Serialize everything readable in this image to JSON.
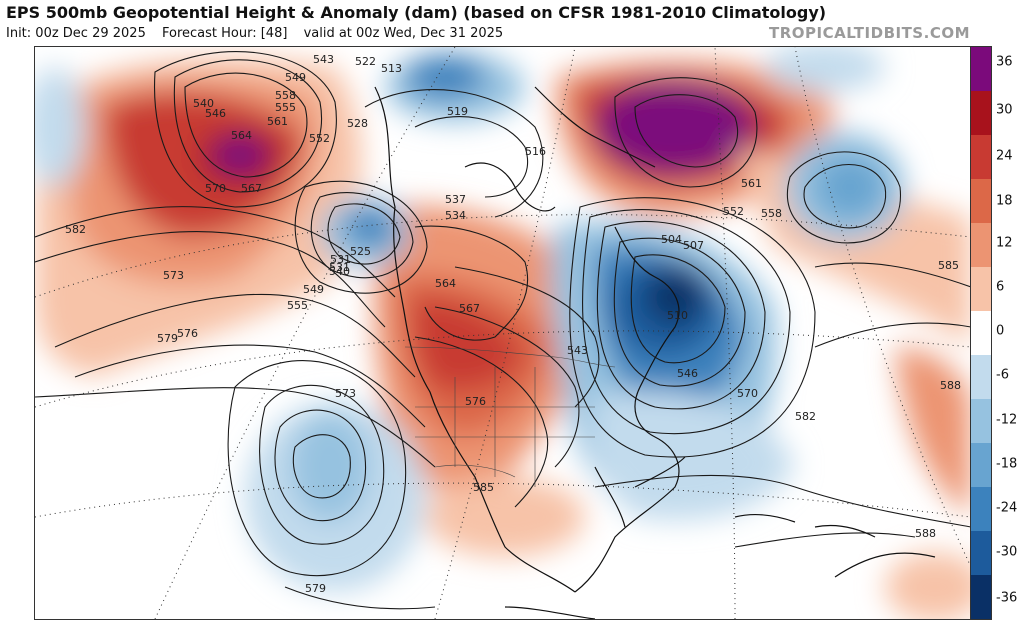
{
  "header": {
    "title": "EPS 500mb Geopotential Height & Anomaly (dam) (based on CFSR 1981-2010 Climatology)",
    "init": "Init: 00z Dec 29 2025",
    "forecast_hour": "Forecast Hour: [48]",
    "valid": "valid at 00z Wed, Dec 31 2025",
    "brand": "TROPICALTIDBITS.COM"
  },
  "colorbar": {
    "ticks": [
      "36",
      "30",
      "24",
      "18",
      "12",
      "6",
      "0",
      "-6",
      "-12",
      "-18",
      "-24",
      "-30",
      "-36"
    ],
    "colors": [
      "#7b0a7b",
      "#a8121c",
      "#c83a32",
      "#dc6848",
      "#ec9472",
      "#f7c3a8",
      "#ffffff",
      "#c2dbed",
      "#96c2e0",
      "#68a4d0",
      "#3c82bd",
      "#1d5b9c",
      "#0a3066"
    ]
  },
  "height_labels": [
    "549",
    "543",
    "522",
    "513",
    "540",
    "546",
    "555",
    "552",
    "561",
    "558",
    "564",
    "567",
    "570",
    "573",
    "576",
    "579",
    "582",
    "528",
    "519",
    "525",
    "531",
    "534",
    "537",
    "516",
    "504",
    "507",
    "510",
    "585",
    "588",
    "570",
    "573",
    "576",
    "579",
    "582",
    "585",
    "588",
    "564",
    "567",
    "531",
    "540",
    "555",
    "549",
    "558",
    "561",
    "552",
    "543",
    "546"
  ]
}
